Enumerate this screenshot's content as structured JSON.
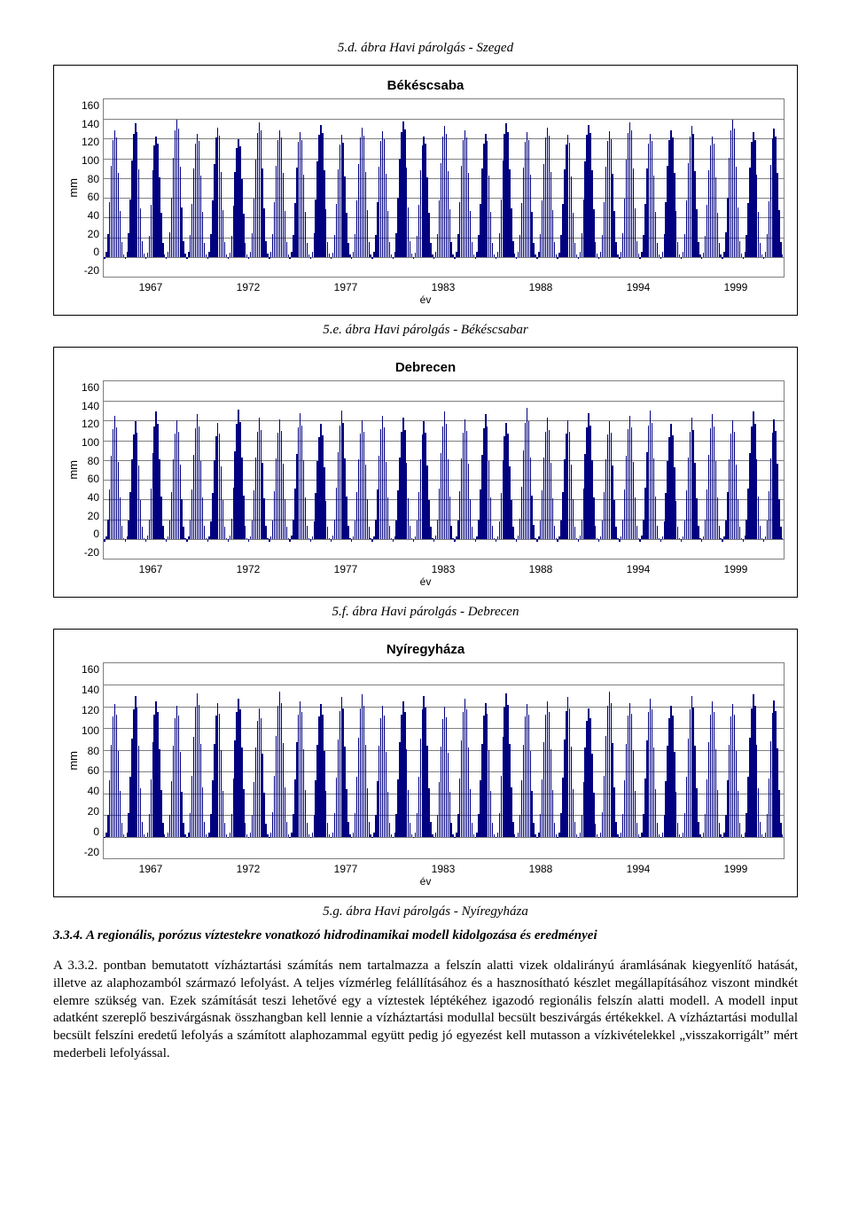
{
  "captions": {
    "d": "5.d. ábra   Havi párolgás - Szeged",
    "e": "5.e. ábra   Havi párolgás - Békéscsabar",
    "f": "5.f. ábra   Havi párolgás - Debrecen",
    "g": "5.g. ábra   Havi párolgás - Nyíregyháza"
  },
  "chart_defaults": {
    "ylabel": "mm",
    "xlabel": "év",
    "xticks": [
      "1967",
      "1972",
      "1977",
      "1983",
      "1988",
      "1994",
      "1999"
    ],
    "bar_color": "#000080",
    "grid_color": "#7f7f7f",
    "background": "#ffffff",
    "title_fontsize": 15,
    "tick_fontsize": 12,
    "label_fontsize": 13
  },
  "charts": [
    {
      "title": "Békéscsaba",
      "ymin": -20,
      "ymax": 160,
      "ystep": 20,
      "series_pattern": [
        -2,
        4,
        22,
        55,
        92,
        118,
        128,
        120,
        84,
        46,
        14,
        2
      ],
      "jitter": [
        1.0,
        1.05,
        0.95,
        1.08,
        0.97,
        1.02,
        0.93,
        1.06,
        1.0,
        0.98,
        1.04,
        0.96,
        1.02,
        0.99,
        1.07,
        0.95,
        1.03,
        1.0,
        0.97,
        1.05,
        0.98,
        1.02,
        0.96,
        1.04,
        0.99,
        1.06,
        0.97,
        1.0,
        1.03,
        0.95,
        1.08,
        0.98,
        1.01
      ]
    },
    {
      "title": "Debrecen",
      "ymin": -20,
      "ymax": 160,
      "ystep": 20,
      "series_pattern": [
        -3,
        2,
        18,
        48,
        82,
        108,
        122,
        110,
        76,
        40,
        12,
        0
      ],
      "jitter": [
        1.02,
        0.97,
        1.05,
        0.98,
        1.03,
        0.96,
        1.07,
        1.0,
        0.99,
        1.04,
        0.95,
        1.06,
        0.98,
        1.02,
        1.0,
        0.97,
        1.05,
        0.99,
        1.03,
        0.96,
        1.08,
        1.0,
        0.98,
        1.04,
        0.97,
        1.02,
        1.06,
        0.95,
        1.0,
        1.03,
        0.98,
        1.05,
        0.99
      ]
    },
    {
      "title": "Nyíregyháza",
      "ymin": -20,
      "ymax": 160,
      "ystep": 20,
      "series_pattern": [
        -1,
        3,
        20,
        52,
        86,
        112,
        124,
        114,
        80,
        42,
        12,
        1
      ],
      "jitter": [
        0.98,
        1.04,
        1.0,
        0.97,
        1.06,
        0.99,
        1.02,
        0.95,
        1.07,
        1.0,
        0.98,
        1.03,
        1.05,
        0.97,
        1.0,
        1.04,
        0.96,
        1.02,
        0.99,
        1.06,
        0.98,
        1.0,
        1.03,
        0.95,
        1.07,
        0.99,
        1.02,
        0.97,
        1.04,
        1.0,
        0.98,
        1.05,
        1.01
      ]
    }
  ],
  "heading_lead": "3.3.4. A regionális, porózus víztestekre vonatkozó hidrodinamikai modell kidolgozása és eredményei",
  "body": "A 3.3.2. pontban bemutatott vízháztartási számítás nem tartalmazza a felszín alatti vizek oldalirányú áramlásának kiegyenlítő hatását, illetve az alaphozamból származó lefolyást. A teljes vízmérleg felállításához és a hasznosítható készlet megállapításához viszont mindkét elemre szükség van. Ezek számítását teszi lehetővé egy a víztestek léptékéhez igazodó regionális felszín alatti modell. A modell input adatként szereplő beszivárgásnak összhangban kell lennie a vízháztartási modullal becsült beszivárgás értékekkel. A vízháztartási modullal becsült felszíni eredetű lefolyás a számított alaphozammal együtt pedig jó egyezést kell mutasson a vízkivételekkel „visszakorrigált” mért mederbeli lefolyással."
}
